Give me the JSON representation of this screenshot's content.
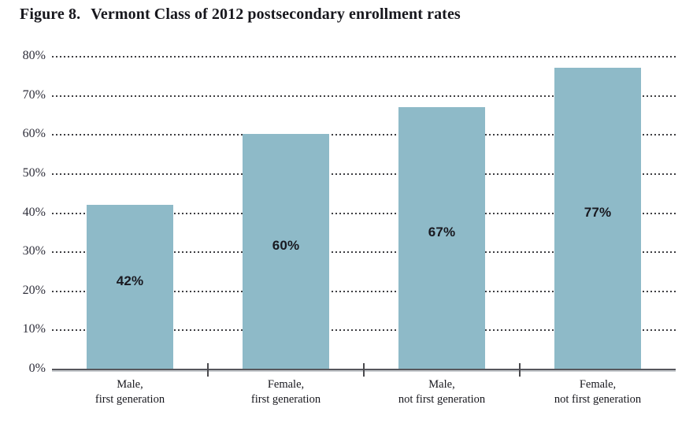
{
  "header": {
    "figure_label": "Figure 8.",
    "title": "Vermont Class of 2012 postsecondary enrollment rates"
  },
  "chart_data": {
    "type": "bar",
    "title": "Figure 8. Vermont Class of 2012 postsecondary enrollment rates",
    "categories": [
      "Male, first generation",
      "Female, first generation",
      "Male, not first generation",
      "Female, not first generation"
    ],
    "category_lines": [
      [
        "Male,",
        "first generation"
      ],
      [
        "Female,",
        "first generation"
      ],
      [
        "Male,",
        "not first generation"
      ],
      [
        "Female,",
        "not first generation"
      ]
    ],
    "values": [
      42,
      60,
      67,
      77
    ],
    "bar_labels": [
      "42%",
      "60%",
      "67%",
      "77%"
    ],
    "xlabel": "",
    "ylabel": "",
    "ylim": [
      0,
      80
    ],
    "ytick_labels": [
      "80%",
      "70%",
      "60%",
      "50%",
      "40%",
      "30%",
      "20%",
      "10%",
      "0%"
    ],
    "grid": "horizontal-dashed",
    "legend": "none",
    "bar_color": "#8EBAC8",
    "axis_color": "#56565c",
    "gridline_color": "#3e3e42"
  }
}
